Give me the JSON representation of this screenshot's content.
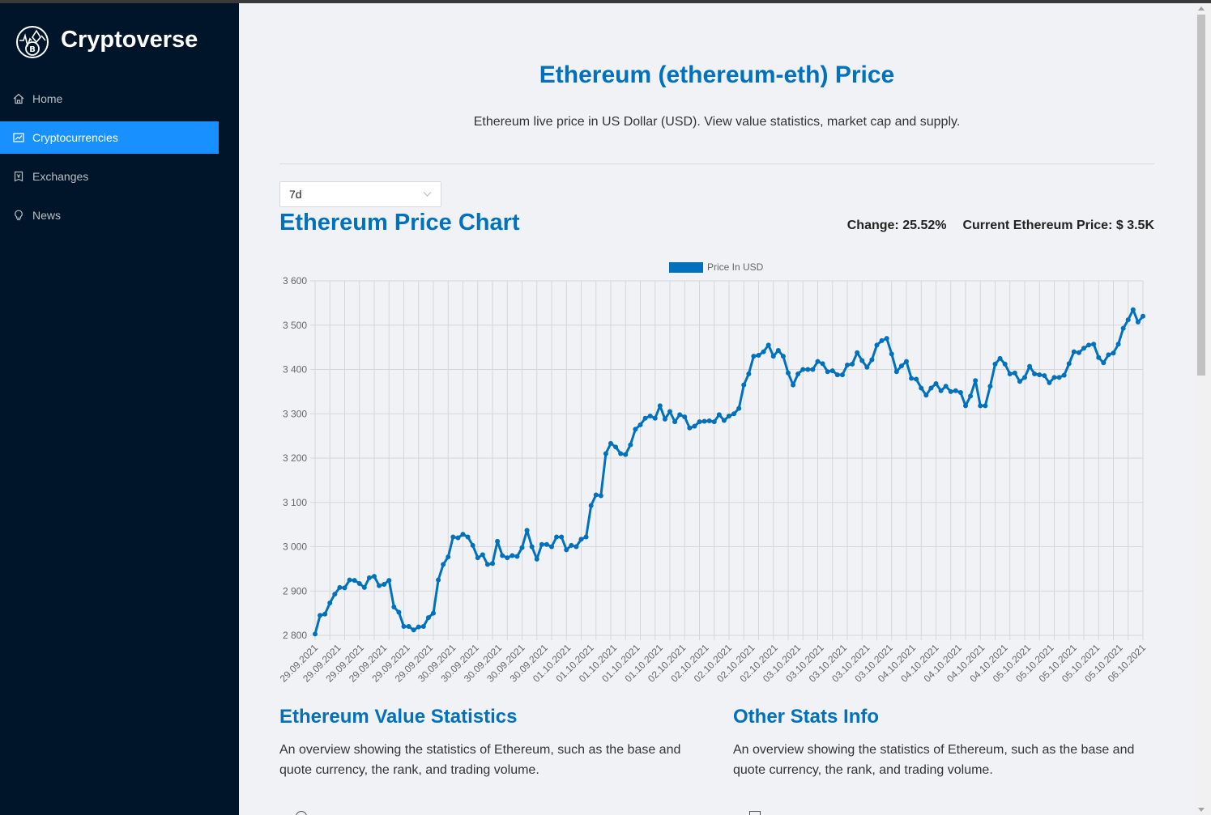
{
  "sidebar": {
    "app_title": "Cryptoverse",
    "items": [
      {
        "label": "Home",
        "icon": "home-icon",
        "active": false
      },
      {
        "label": "Cryptocurrencies",
        "icon": "fund-icon",
        "active": true
      },
      {
        "label": "Exchanges",
        "icon": "money-collect-icon",
        "active": false
      },
      {
        "label": "News",
        "icon": "bulb-icon",
        "active": false
      }
    ]
  },
  "colors": {
    "accent": "#1890ff",
    "title": "#0071bd",
    "sidebar_bg": "#001529",
    "line": "#0071bd"
  },
  "page": {
    "title": "Ethereum (ethereum-eth) Price",
    "subtitle": "Ethereum live price in US Dollar (USD). View value statistics, market cap and supply."
  },
  "period_select": {
    "value": "7d"
  },
  "chart_header": {
    "title": "Ethereum Price Chart",
    "change": "Change: 25.52%",
    "current_price": "Current Ethereum Price: $ 3.5K"
  },
  "chart_data": {
    "type": "line",
    "legend": "Price In USD",
    "ylim": [
      2800,
      3600
    ],
    "yticks": [
      "3 600",
      "3 500",
      "3 400",
      "3 300",
      "3 200",
      "3 100",
      "3 000",
      "2 900",
      "2 800"
    ],
    "xtick_labels": [
      "29.09.2021",
      "29.09.2021",
      "29.09.2021",
      "29.09.2021",
      "29.09.2021",
      "29.09.2021",
      "30.09.2021",
      "30.09.2021",
      "30.09.2021",
      "30.09.2021",
      "30.09.2021",
      "01.10.2021",
      "01.10.2021",
      "01.10.2021",
      "01.10.2021",
      "01.10.2021",
      "02.10.2021",
      "02.10.2021",
      "02.10.2021",
      "02.10.2021",
      "02.10.2021",
      "03.10.2021",
      "03.10.2021",
      "03.10.2021",
      "03.10.2021",
      "03.10.2021",
      "04.10.2021",
      "04.10.2021",
      "04.10.2021",
      "04.10.2021",
      "04.10.2021",
      "05.10.2021",
      "05.10.2021",
      "05.10.2021",
      "05.10.2021",
      "05.10.2021",
      "06.10.2021"
    ],
    "values": [
      2803,
      2845,
      2848,
      2873,
      2893,
      2908,
      2907,
      2925,
      2924,
      2917,
      2908,
      2930,
      2933,
      2912,
      2915,
      2924,
      2864,
      2852,
      2820,
      2820,
      2812,
      2819,
      2820,
      2840,
      2850,
      2925,
      2960,
      2977,
      3022,
      3020,
      3028,
      3022,
      3003,
      2975,
      2982,
      2960,
      2962,
      3012,
      2980,
      2975,
      2980,
      2978,
      2998,
      3037,
      3000,
      2972,
      3005,
      3005,
      3000,
      3022,
      3022,
      2993,
      3003,
      3000,
      3017,
      3022,
      3093,
      3117,
      3115,
      3210,
      3233,
      3225,
      3210,
      3208,
      3230,
      3265,
      3275,
      3290,
      3295,
      3290,
      3318,
      3288,
      3305,
      3282,
      3298,
      3293,
      3268,
      3272,
      3282,
      3283,
      3284,
      3282,
      3298,
      3285,
      3295,
      3300,
      3312,
      3365,
      3390,
      3430,
      3432,
      3440,
      3455,
      3430,
      3443,
      3430,
      3392,
      3365,
      3390,
      3400,
      3400,
      3400,
      3418,
      3413,
      3395,
      3397,
      3388,
      3388,
      3410,
      3412,
      3438,
      3420,
      3405,
      3422,
      3455,
      3465,
      3470,
      3435,
      3395,
      3408,
      3418,
      3380,
      3378,
      3358,
      3342,
      3358,
      3368,
      3352,
      3362,
      3350,
      3352,
      3348,
      3318,
      3340,
      3375,
      3318,
      3318,
      3362,
      3412,
      3425,
      3412,
      3390,
      3392,
      3373,
      3382,
      3407,
      3390,
      3388,
      3386,
      3370,
      3382,
      3382,
      3387,
      3413,
      3440,
      3438,
      3448,
      3455,
      3457,
      3427,
      3415,
      3433,
      3437,
      3457,
      3493,
      3512,
      3535,
      3507,
      3520
    ]
  },
  "sections": {
    "value_stats": {
      "title": "Ethereum Value Statistics",
      "text": "An overview showing the statistics of Ethereum, such as the base and quote currency, the rank, and trading volume."
    },
    "other_stats": {
      "title": "Other Stats Info",
      "text": "An overview showing the statistics of Ethereum, such as the base and quote currency, the rank, and trading volume."
    }
  }
}
